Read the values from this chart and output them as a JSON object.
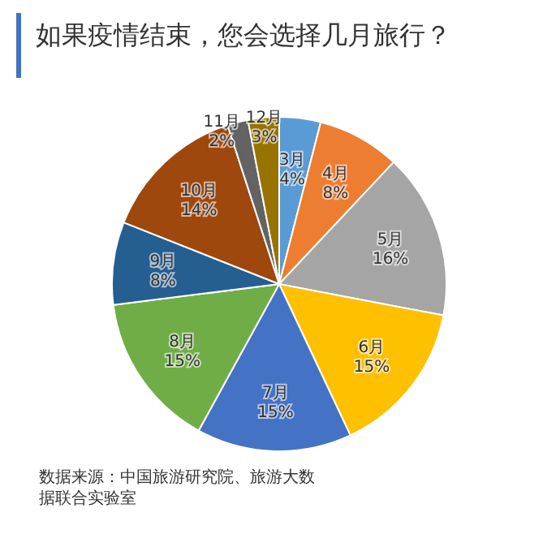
{
  "chart_data": {
    "type": "pie",
    "title": "如果疫情结束，您会选择几月旅行？",
    "categories": [
      "3月",
      "4月",
      "5月",
      "6月",
      "7月",
      "8月",
      "9月",
      "10月",
      "11月",
      "12月"
    ],
    "values": [
      4,
      8,
      16,
      15,
      15,
      15,
      8,
      14,
      2,
      3
    ],
    "value_labels": [
      "4%",
      "8%",
      "16%",
      "15%",
      "15%",
      "15%",
      "8%",
      "14%",
      "2%",
      "3%"
    ],
    "colors": [
      "#5b9bd5",
      "#ed7d31",
      "#a5a5a5",
      "#ffc000",
      "#4472c4",
      "#70ad47",
      "#255e91",
      "#9e480e",
      "#636363",
      "#997300"
    ],
    "annotations": [
      "数据来源：中国旅游研究院、旅游大数据联合实验室"
    ]
  }
}
